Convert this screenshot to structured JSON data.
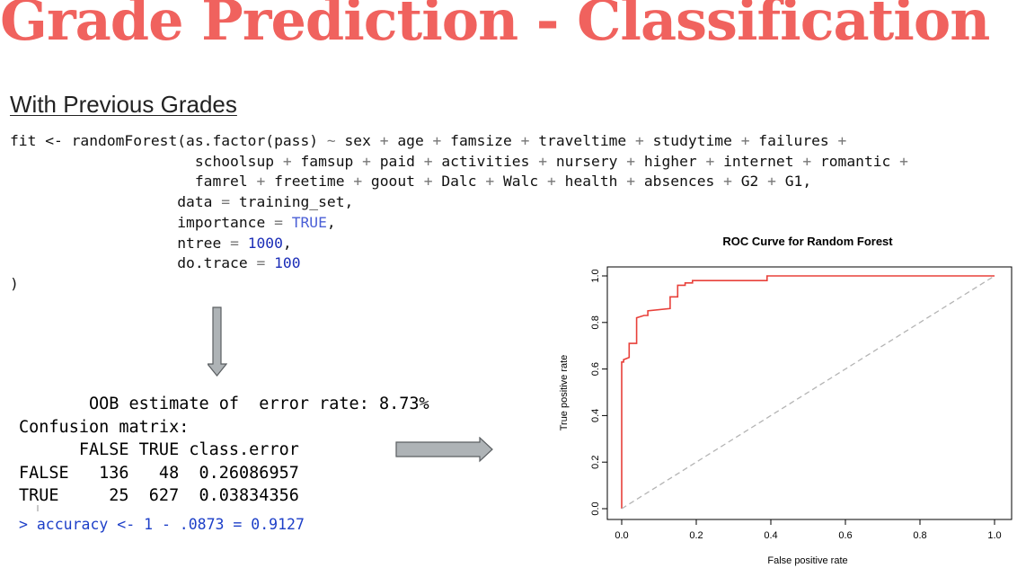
{
  "slide": {
    "title": "Grade Prediction - Classification",
    "subtitle": "With Previous Grades"
  },
  "code": {
    "line1": {
      "a": "fit <- randomForest(as.factor(pass) ",
      "tilde": "~",
      "b": " sex ",
      "p1": "+",
      "c": " age ",
      "p2": "+",
      "d": " famsize ",
      "p3": "+",
      "e": " traveltime ",
      "p4": "+",
      "f": " studytime ",
      "p5": "+",
      "g": " failures ",
      "p6": "+"
    },
    "line2": {
      "a": "                     schoolsup ",
      "p1": "+",
      "b": " famsup ",
      "p2": "+",
      "c": " paid ",
      "p3": "+",
      "d": " activities ",
      "p4": "+",
      "e": " nursery ",
      "p5": "+",
      "f": " higher ",
      "p6": "+",
      "g": " internet ",
      "p7": "+",
      "h": " romantic ",
      "p8": "+"
    },
    "line3": {
      "a": "                     famrel ",
      "p1": "+",
      "b": " freetime ",
      "p2": "+",
      "c": " goout ",
      "p3": "+",
      "d": " Dalc ",
      "p4": "+",
      "e": " Walc ",
      "p5": "+",
      "f": " health ",
      "p6": "+",
      "g": " absences ",
      "p7": "+",
      "h": " G2 ",
      "p8": "+",
      "i": " G1,"
    },
    "line4": {
      "a": "                   data ",
      "eq": "=",
      "b": " training_set,"
    },
    "line5": {
      "a": "                   importance ",
      "eq": "=",
      "sp": " ",
      "val": "TRUE",
      "c": ","
    },
    "line6": {
      "a": "                   ntree ",
      "eq": "=",
      "sp": " ",
      "val": "1000",
      "c": ","
    },
    "line7": {
      "a": "                   do.trace ",
      "eq": "=",
      "sp": " ",
      "val": "100"
    },
    "line8": ")"
  },
  "output": {
    "oob_line": "       OOB estimate of  error rate: 8.73%",
    "confusion_label": "Confusion matrix:",
    "header": "      FALSE TRUE class.error",
    "row_false": "FALSE   136   48  0.26086957",
    "row_true": "TRUE     25  627  0.03834356",
    "accuracy": "> accuracy <- 1 - .0873 = 0.9127"
  },
  "chart_data": {
    "type": "line",
    "title": "ROC Curve for Random Forest",
    "xlabel": "False positive rate",
    "ylabel": "True positive rate",
    "xlim": [
      0,
      1
    ],
    "ylim": [
      0,
      1
    ],
    "x_ticks": [
      "0.0",
      "0.2",
      "0.4",
      "0.6",
      "0.8",
      "1.0"
    ],
    "y_ticks": [
      "0.0",
      "0.2",
      "0.4",
      "0.6",
      "0.8",
      "1.0"
    ],
    "grid": false,
    "series": [
      {
        "color": "#e8403a",
        "x": [
          0,
          0,
          0.005,
          0.005,
          0.02,
          0.02,
          0.04,
          0.04,
          0.06,
          0.07,
          0.07,
          0.13,
          0.13,
          0.15,
          0.15,
          0.17,
          0.17,
          0.19,
          0.19,
          0.39,
          0.39,
          1.0
        ],
        "y": [
          0,
          0.63,
          0.63,
          0.64,
          0.65,
          0.71,
          0.71,
          0.82,
          0.83,
          0.83,
          0.85,
          0.86,
          0.91,
          0.91,
          0.96,
          0.96,
          0.97,
          0.97,
          0.98,
          0.98,
          1.0,
          1.0
        ]
      },
      {
        "color": "#b4b4b4",
        "dashed": true,
        "x": [
          0,
          1
        ],
        "y": [
          0,
          1
        ]
      }
    ]
  }
}
